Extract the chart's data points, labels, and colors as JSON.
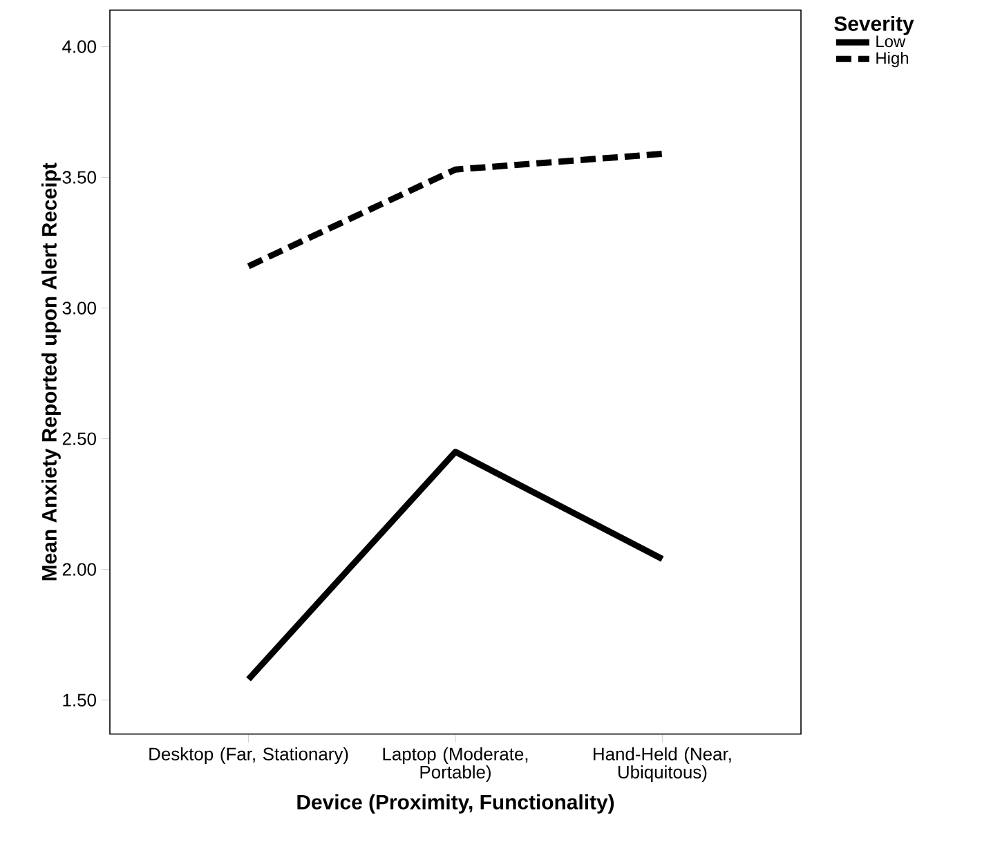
{
  "chart_data": {
    "type": "line",
    "xlabel": "Device (Proximity, Functionality)",
    "ylabel": "Mean Anxiety Reported upon Alert Receipt",
    "legend_title": "Severity",
    "categories": [
      "Desktop (Far, Stationary)",
      "Laptop (Moderate, Portable)",
      "Hand-Held (Near, Ubiquitous)"
    ],
    "series": [
      {
        "name": "Low",
        "color": "#000000",
        "line_style": "solid",
        "values": [
          1.58,
          2.45,
          2.04
        ]
      },
      {
        "name": "High",
        "color": "#000000",
        "line_style": "dashed",
        "values": [
          3.16,
          3.53,
          3.59
        ]
      }
    ],
    "ylim": [
      1.37,
      4.14
    ],
    "yticks": [
      {
        "value": 1.5,
        "label": "1.50"
      },
      {
        "value": 2,
        "label": "2.00"
      },
      {
        "value": 2.5,
        "label": "2.50"
      },
      {
        "value": 3,
        "label": "3.00"
      },
      {
        "value": 3.5,
        "label": "3.50"
      },
      {
        "value": 4,
        "label": "4.00"
      }
    ],
    "grid": false,
    "legend": "top right",
    "marker": "none"
  }
}
